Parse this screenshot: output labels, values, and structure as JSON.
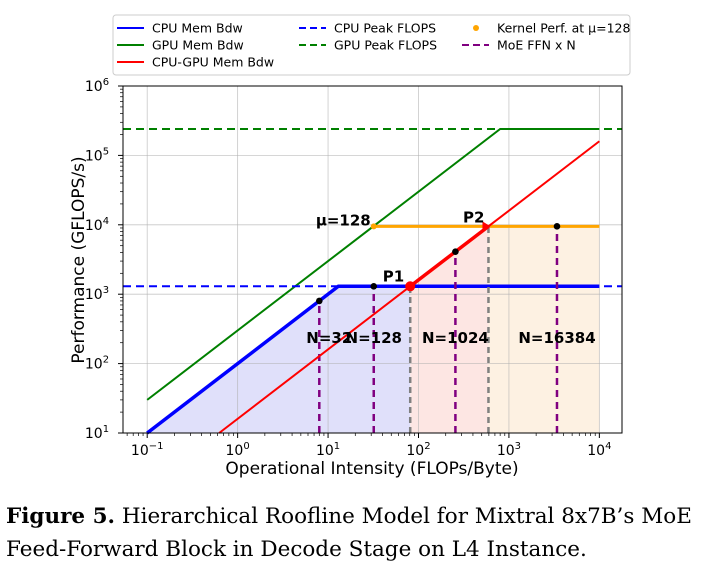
{
  "chart_data": {
    "type": "line",
    "xlabel": "Operational Intensity (FLOPs/Byte)",
    "ylabel": "Performance (GFLOPS/s)",
    "xscale": "log",
    "yscale": "log",
    "xlim": [
      0.054,
      17800
    ],
    "ylim": [
      10,
      1000000
    ],
    "grid": true,
    "legend_placement": "top, outside",
    "xticks": [
      {
        "v": 0.1,
        "b": "10",
        "e": "−1"
      },
      {
        "v": 1,
        "b": "10",
        "e": "0"
      },
      {
        "v": 10,
        "b": "10",
        "e": "1"
      },
      {
        "v": 100,
        "b": "10",
        "e": "2"
      },
      {
        "v": 1000,
        "b": "10",
        "e": "3"
      },
      {
        "v": 10000,
        "b": "10",
        "e": "4"
      }
    ],
    "yticks": [
      {
        "v": 10,
        "b": "10",
        "e": "1"
      },
      {
        "v": 100,
        "b": "10",
        "e": "2"
      },
      {
        "v": 1000,
        "b": "10",
        "e": "3"
      },
      {
        "v": 10000,
        "b": "10",
        "e": "4"
      },
      {
        "v": 100000,
        "b": "10",
        "e": "5"
      },
      {
        "v": 1000000,
        "b": "10",
        "e": "6"
      }
    ],
    "series": [
      {
        "name": "CPU Mem Bdw",
        "color": "#0000ff",
        "style": "solid",
        "points": [
          [
            0.1,
            10
          ],
          [
            13,
            1300
          ],
          [
            10000,
            1300
          ]
        ]
      },
      {
        "name": "GPU Mem Bdw",
        "color": "#008000",
        "style": "solid",
        "points": [
          [
            0.1,
            30
          ],
          [
            800,
            240000
          ],
          [
            10000,
            240000
          ]
        ]
      },
      {
        "name": "CPU-GPU Mem Bdw",
        "color": "#ff0000",
        "style": "solid",
        "points": [
          [
            0.625,
            10
          ],
          [
            10000,
            160000
          ]
        ]
      },
      {
        "name": "CPU Peak FLOPS",
        "color": "#0000ff",
        "style": "dashed",
        "y": 1300
      },
      {
        "name": "GPU Peak FLOPS",
        "color": "#008000",
        "style": "dashed",
        "y": 240000
      },
      {
        "name": "Kernel Perf. at μ=128",
        "color": "#ffa500",
        "style": "solid",
        "points": [
          [
            32,
            9500
          ],
          [
            10000,
            9500
          ]
        ]
      },
      {
        "name": "MoE FFN x N",
        "color": "#800080",
        "style": "dashed",
        "points": [
          [
            8,
            800
          ],
          [
            32,
            1300
          ],
          [
            256,
            4100
          ],
          [
            3400,
            9500
          ]
        ]
      }
    ],
    "points": [
      {
        "label": "P1",
        "x": 81,
        "y": 1300,
        "color": "#ff0000"
      },
      {
        "label": "P2",
        "x": 594,
        "y": 9500,
        "color": "#ff0000"
      }
    ],
    "annotations": [
      {
        "text": "μ=128",
        "x": 32,
        "y": 9500
      },
      {
        "text": "N=32",
        "x": 8
      },
      {
        "text": "N=128",
        "x": 32
      },
      {
        "text": "N=1024",
        "x": 256
      },
      {
        "text": "N=16384",
        "x": 3400
      }
    ],
    "regions": [
      {
        "color": "#e0e0fa",
        "from": 0.1,
        "to": 81
      },
      {
        "color": "#fde6e3",
        "from": 81,
        "to": 594
      },
      {
        "color": "#fdf1e2",
        "from": 594,
        "to": 10000
      }
    ]
  },
  "caption": {
    "label": "Figure 5.",
    "text": " Hierarchical Roofline Model for Mixtral 8x7B’s MoE Feed-Forward Block in Decode Stage on L4 Instance."
  }
}
